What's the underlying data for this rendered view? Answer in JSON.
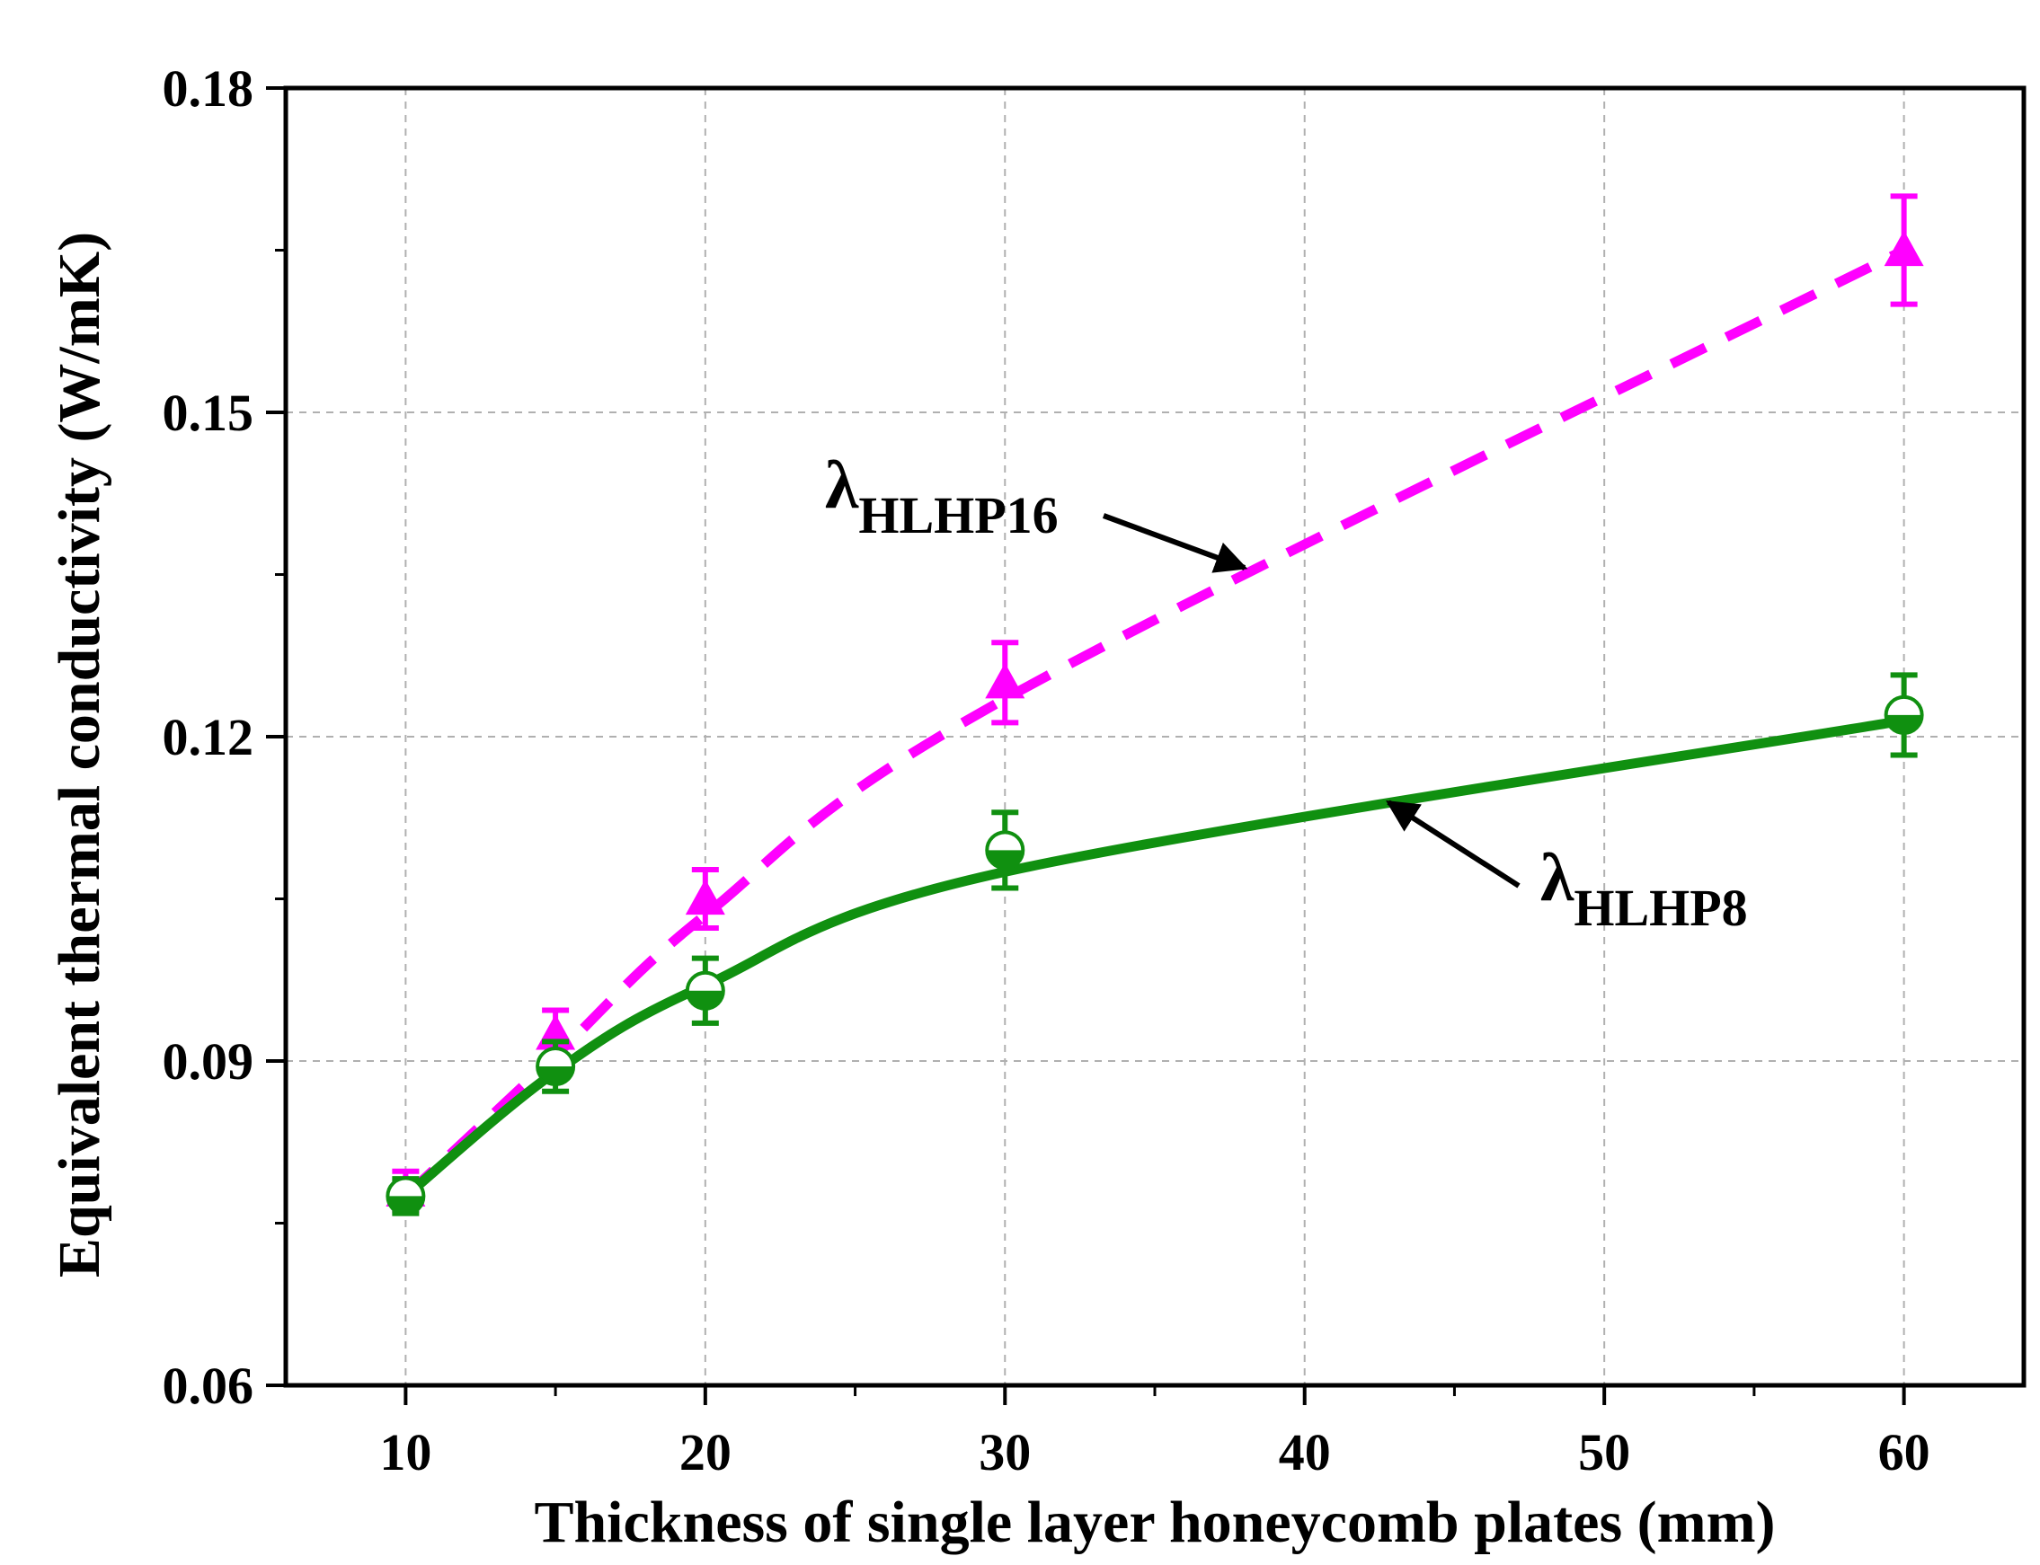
{
  "chart_data": {
    "type": "line",
    "xlabel": "Thickness of single layer honeycomb plates (mm)",
    "ylabel": "Equivalent thermal conductivity (W/mK)",
    "xlim": [
      6,
      64
    ],
    "ylim": [
      0.06,
      0.18
    ],
    "x_ticks": [
      10,
      20,
      30,
      40,
      50,
      60
    ],
    "x_tick_labels": [
      "10",
      "20",
      "30",
      "40",
      "50",
      "60"
    ],
    "y_ticks": [
      0.06,
      0.09,
      0.12,
      0.15,
      0.18
    ],
    "y_tick_labels": [
      "0.06",
      "0.09",
      "0.12",
      "0.15",
      "0.18"
    ],
    "grid": true,
    "series": [
      {
        "name": "HLHP16",
        "symbol": "λ",
        "color": "#ff00ff",
        "line_style": "dashed",
        "marker": "triangle",
        "x": [
          10,
          15,
          20,
          30,
          60
        ],
        "y": [
          0.078,
          0.0925,
          0.105,
          0.125,
          0.165
        ],
        "error": [
          0.0018,
          0.0022,
          0.0027,
          0.0037,
          0.005
        ],
        "fit_y": [
          0.0775,
          0.0905,
          0.1035,
          0.1235,
          0.165
        ]
      },
      {
        "name": "HLHP8",
        "symbol": "λ",
        "color": "#109010",
        "line_style": "solid",
        "marker": "half-filled-circle",
        "x": [
          10,
          15,
          20,
          30,
          60
        ],
        "y": [
          0.0775,
          0.0895,
          0.0965,
          0.1095,
          0.122
        ],
        "error": [
          0.0016,
          0.0023,
          0.003,
          0.0035,
          0.0037
        ],
        "fit_y": [
          0.0775,
          0.089,
          0.097,
          0.1075,
          0.1215
        ]
      }
    ],
    "annotations": [
      {
        "symbol": "λ",
        "subscript": "HLHP16",
        "target_series": "HLHP16"
      },
      {
        "symbol": "λ",
        "subscript": "HLHP8",
        "target_series": "HLHP8"
      }
    ]
  }
}
